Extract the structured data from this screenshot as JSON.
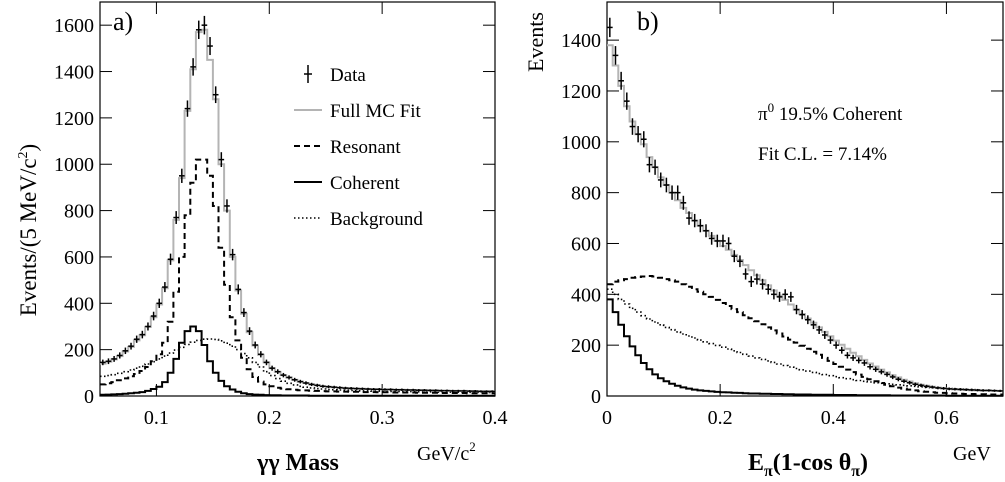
{
  "chart_data": [
    {
      "type": "line",
      "panel_label": "a)",
      "ylabel": "Events/(5 MeV/c",
      "ylabel_sup": "2",
      "ylabel_close": ")",
      "xlabel": "γγ Mass",
      "xunit": "GeV/c",
      "xunit_sup": "2",
      "xlim": [
        0.05,
        0.4
      ],
      "ylim": [
        0,
        1700
      ],
      "xticks": [
        0.1,
        0.2,
        0.3,
        0.4
      ],
      "xtick_labels": [
        "0.1",
        "0.2",
        "0.3",
        "0.4"
      ],
      "yticks": [
        0,
        200,
        400,
        600,
        800,
        1000,
        1200,
        1400,
        1600
      ],
      "ytick_labels": [
        "0",
        "200",
        "400",
        "600",
        "800",
        "1000",
        "1200",
        "1400",
        "1600"
      ],
      "legend_placement": "right",
      "legend": [
        {
          "label": "Data",
          "style": "data"
        },
        {
          "label": "Full MC Fit",
          "style": "full"
        },
        {
          "label": "Resonant",
          "style": "resonant"
        },
        {
          "label": "Coherent",
          "style": "coherent"
        },
        {
          "label": "Background",
          "style": "background"
        }
      ],
      "bin_edges": [
        0.05,
        0.055,
        0.06,
        0.065,
        0.07,
        0.075,
        0.08,
        0.085,
        0.09,
        0.095,
        0.1,
        0.105,
        0.11,
        0.115,
        0.12,
        0.125,
        0.13,
        0.135,
        0.14,
        0.145,
        0.15,
        0.155,
        0.16,
        0.165,
        0.17,
        0.175,
        0.18,
        0.185,
        0.19,
        0.195,
        0.2,
        0.205,
        0.21,
        0.215,
        0.22,
        0.225,
        0.23,
        0.235,
        0.24,
        0.245,
        0.25,
        0.255,
        0.26,
        0.265,
        0.27,
        0.275,
        0.28,
        0.285,
        0.29,
        0.295,
        0.3,
        0.305,
        0.31,
        0.315,
        0.32,
        0.325,
        0.33,
        0.335,
        0.34,
        0.345,
        0.35,
        0.355,
        0.36,
        0.365,
        0.37,
        0.375,
        0.38,
        0.385,
        0.39,
        0.395,
        0.4
      ],
      "series": [
        {
          "name": "Data",
          "style": "data",
          "x": [
            0.0525,
            0.0575,
            0.0625,
            0.0675,
            0.0725,
            0.0775,
            0.0825,
            0.0875,
            0.0925,
            0.0975,
            0.1025,
            0.1075,
            0.1125,
            0.1175,
            0.1225,
            0.1275,
            0.1325,
            0.1375,
            0.1425,
            0.1475,
            0.1525,
            0.1575,
            0.1625,
            0.1675,
            0.1725,
            0.1775,
            0.1825,
            0.1875,
            0.1925,
            0.1975,
            0.2025,
            0.2075,
            0.2125,
            0.2175,
            0.2225,
            0.2275,
            0.2325,
            0.2375,
            0.2425,
            0.2475,
            0.2525,
            0.2575,
            0.2625,
            0.2675,
            0.2725,
            0.2775,
            0.2825,
            0.2875,
            0.2925,
            0.2975,
            0.3025,
            0.3075,
            0.3125,
            0.3175,
            0.3225,
            0.3275,
            0.3325,
            0.3375,
            0.3425,
            0.3475,
            0.3525,
            0.3575,
            0.3625,
            0.3675,
            0.3725,
            0.3775,
            0.3825,
            0.3875,
            0.3925,
            0.3975
          ],
          "y": [
            145,
            150,
            160,
            175,
            195,
            215,
            245,
            265,
            300,
            345,
            400,
            470,
            590,
            770,
            950,
            1240,
            1420,
            1580,
            1600,
            1510,
            1300,
            1020,
            820,
            610,
            460,
            360,
            280,
            220,
            180,
            145,
            120,
            105,
            90,
            80,
            70,
            62,
            56,
            50,
            46,
            42,
            40,
            38,
            36,
            34,
            33,
            32,
            31,
            30,
            29,
            29,
            28,
            28,
            27,
            27,
            26,
            26,
            25,
            25,
            24,
            24,
            23,
            23,
            22,
            22,
            22,
            21,
            21,
            20,
            20,
            20
          ]
        },
        {
          "name": "Full MC Fit",
          "style": "full",
          "values": [
            140,
            148,
            158,
            172,
            192,
            212,
            240,
            262,
            298,
            340,
            395,
            465,
            585,
            760,
            940,
            1230,
            1410,
            1570,
            1580,
            1450,
            1280,
            1000,
            800,
            600,
            455,
            355,
            275,
            218,
            178,
            145,
            120,
            104,
            90,
            80,
            70,
            62,
            56,
            50,
            46,
            42,
            40,
            38,
            36,
            34,
            33,
            32,
            31,
            30,
            29,
            29,
            28,
            28,
            27,
            27,
            26,
            26,
            25,
            25,
            24,
            24,
            23,
            23,
            22,
            22,
            22,
            21,
            21,
            20,
            20,
            20
          ]
        },
        {
          "name": "Resonant",
          "style": "resonant",
          "values": [
            50,
            55,
            60,
            68,
            76,
            85,
            95,
            108,
            125,
            150,
            180,
            230,
            320,
            450,
            600,
            780,
            920,
            1020,
            1020,
            950,
            820,
            640,
            480,
            340,
            240,
            165,
            115,
            82,
            62,
            50,
            42,
            36,
            32,
            29,
            27,
            25,
            24,
            23,
            22,
            21,
            20,
            20,
            19,
            19,
            18,
            18,
            17,
            17,
            17,
            16,
            16,
            16,
            15,
            15,
            15,
            15,
            14,
            14,
            14,
            14,
            13,
            13,
            13,
            13,
            13,
            12,
            12,
            12,
            12,
            12
          ]
        },
        {
          "name": "Coherent",
          "style": "coherent",
          "values": [
            5,
            6,
            7,
            8,
            10,
            12,
            14,
            17,
            22,
            30,
            40,
            60,
            100,
            160,
            230,
            280,
            300,
            280,
            220,
            150,
            100,
            65,
            42,
            28,
            18,
            12,
            8,
            6,
            5,
            4,
            3,
            3,
            2,
            2,
            2,
            2,
            2,
            1,
            1,
            1,
            1,
            1,
            1,
            1,
            1,
            1,
            1,
            1,
            1,
            1,
            1,
            1,
            1,
            1,
            1,
            1,
            1,
            1,
            1,
            1,
            1,
            1,
            1,
            1,
            1,
            1,
            1,
            1,
            1,
            1
          ]
        },
        {
          "name": "Background",
          "style": "background",
          "values": [
            85,
            88,
            92,
            98,
            105,
            112,
            120,
            128,
            138,
            148,
            160,
            172,
            185,
            198,
            210,
            222,
            232,
            240,
            245,
            246,
            244,
            238,
            228,
            215,
            200,
            183,
            165,
            145,
            125,
            105,
            88,
            75,
            64,
            55,
            48,
            42,
            38,
            35,
            32,
            30,
            28,
            27,
            26,
            25,
            24,
            23,
            22,
            22,
            21,
            21,
            20,
            20,
            20,
            19,
            19,
            19,
            18,
            18,
            18,
            18,
            17,
            17,
            17,
            17,
            16,
            16,
            16,
            16,
            16,
            15
          ]
        }
      ]
    },
    {
      "type": "line",
      "panel_label": "b)",
      "ylabel": "Events",
      "xlabel_main": "E",
      "xlabel_sub": "π",
      "xlabel_mid": "(1-cos θ",
      "xlabel_sub2": "π",
      "xlabel_close": ")",
      "xunit": "GeV",
      "xlim": [
        0,
        0.7
      ],
      "ylim": [
        0,
        1550
      ],
      "xticks": [
        0,
        0.2,
        0.4,
        0.6
      ],
      "xtick_labels": [
        "0",
        "0.2",
        "0.4",
        "0.6"
      ],
      "yticks": [
        0,
        200,
        400,
        600,
        800,
        1000,
        1200,
        1400
      ],
      "ytick_labels": [
        "0",
        "200",
        "400",
        "600",
        "800",
        "1000",
        "1200",
        "1400"
      ],
      "annotations": {
        "fraction_pre": "π",
        "fraction_sup": "0",
        "fraction_post": " 19.5% Coherent",
        "fit_cl": "Fit C.L. = 7.14%"
      },
      "bin_edges": [
        0,
        0.01,
        0.02,
        0.03,
        0.04,
        0.05,
        0.06,
        0.07,
        0.08,
        0.09,
        0.1,
        0.11,
        0.12,
        0.13,
        0.14,
        0.15,
        0.16,
        0.17,
        0.18,
        0.19,
        0.2,
        0.21,
        0.22,
        0.23,
        0.24,
        0.25,
        0.26,
        0.27,
        0.28,
        0.29,
        0.3,
        0.31,
        0.32,
        0.33,
        0.34,
        0.35,
        0.36,
        0.37,
        0.38,
        0.39,
        0.4,
        0.41,
        0.42,
        0.43,
        0.44,
        0.45,
        0.46,
        0.47,
        0.48,
        0.49,
        0.5,
        0.51,
        0.52,
        0.53,
        0.54,
        0.55,
        0.56,
        0.57,
        0.58,
        0.59,
        0.6,
        0.61,
        0.62,
        0.63,
        0.64,
        0.65,
        0.66,
        0.67,
        0.68,
        0.69,
        0.7
      ],
      "series": [
        {
          "name": "Data",
          "style": "data",
          "x": [
            0.005,
            0.015,
            0.025,
            0.035,
            0.045,
            0.055,
            0.065,
            0.075,
            0.085,
            0.095,
            0.105,
            0.115,
            0.125,
            0.135,
            0.145,
            0.155,
            0.165,
            0.175,
            0.185,
            0.195,
            0.205,
            0.215,
            0.225,
            0.235,
            0.245,
            0.255,
            0.265,
            0.275,
            0.285,
            0.295,
            0.305,
            0.315,
            0.325,
            0.335,
            0.345,
            0.355,
            0.365,
            0.375,
            0.385,
            0.395,
            0.405,
            0.415,
            0.425,
            0.435,
            0.445,
            0.455,
            0.465,
            0.475,
            0.485,
            0.495,
            0.505,
            0.515,
            0.525,
            0.535,
            0.545,
            0.555,
            0.565,
            0.575,
            0.585,
            0.595,
            0.605,
            0.615,
            0.625,
            0.635,
            0.645,
            0.655,
            0.665,
            0.675,
            0.685,
            0.695
          ],
          "y": [
            1450,
            1340,
            1240,
            1160,
            1060,
            1030,
            1010,
            910,
            900,
            850,
            830,
            800,
            800,
            760,
            700,
            690,
            670,
            650,
            620,
            610,
            610,
            600,
            550,
            530,
            480,
            450,
            460,
            440,
            420,
            400,
            390,
            400,
            390,
            340,
            320,
            300,
            280,
            260,
            240,
            220,
            200,
            180,
            160,
            150,
            140,
            130,
            115,
            105,
            95,
            85,
            75,
            66,
            58,
            52,
            46,
            42,
            38,
            35,
            32,
            30,
            28,
            27,
            26,
            25,
            24,
            23,
            22,
            22,
            21,
            20
          ]
        },
        {
          "name": "Full MC Fit",
          "style": "full",
          "values": [
            1380,
            1300,
            1220,
            1140,
            1080,
            1030,
            990,
            940,
            900,
            860,
            830,
            800,
            770,
            740,
            720,
            690,
            670,
            650,
            630,
            610,
            590,
            575,
            555,
            535,
            515,
            495,
            475,
            455,
            435,
            415,
            395,
            378,
            360,
            340,
            322,
            305,
            288,
            270,
            252,
            235,
            218,
            202,
            186,
            170,
            156,
            142,
            128,
            116,
            104,
            93,
            82,
            73,
            64,
            57,
            50,
            44,
            40,
            36,
            33,
            30,
            28,
            26,
            25,
            24,
            23,
            22,
            21,
            21,
            20,
            20
          ]
        },
        {
          "name": "Resonant",
          "style": "resonant",
          "values": [
            440,
            450,
            455,
            460,
            465,
            468,
            470,
            472,
            470,
            465,
            460,
            455,
            450,
            440,
            430,
            420,
            410,
            400,
            390,
            378,
            366,
            354,
            342,
            330,
            318,
            306,
            294,
            282,
            270,
            258,
            246,
            234,
            222,
            210,
            198,
            186,
            174,
            162,
            150,
            138,
            126,
            115,
            104,
            94,
            84,
            75,
            66,
            58,
            51,
            44,
            38,
            33,
            29,
            25,
            22,
            19,
            17,
            15,
            13,
            12,
            11,
            10,
            9,
            8,
            8,
            7,
            7,
            6,
            6,
            6
          ]
        },
        {
          "name": "Coherent",
          "style": "coherent",
          "values": [
            380,
            330,
            280,
            235,
            195,
            160,
            130,
            105,
            85,
            70,
            58,
            48,
            40,
            34,
            29,
            25,
            22,
            20,
            18,
            16,
            15,
            14,
            13,
            12,
            11,
            10,
            10,
            9,
            9,
            8,
            8,
            7,
            7,
            6,
            6,
            6,
            5,
            5,
            5,
            5,
            4,
            4,
            4,
            4,
            3,
            3,
            3,
            3,
            3,
            3,
            2,
            2,
            2,
            2,
            2,
            2,
            2,
            2,
            2,
            2,
            1,
            1,
            1,
            1,
            1,
            1,
            1,
            1,
            1,
            1
          ]
        },
        {
          "name": "Background",
          "style": "background",
          "values": [
            420,
            400,
            380,
            362,
            345,
            330,
            316,
            303,
            291,
            280,
            270,
            261,
            252,
            244,
            236,
            228,
            220,
            213,
            206,
            199,
            192,
            185,
            178,
            171,
            164,
            157,
            150,
            144,
            138,
            132,
            126,
            120,
            114,
            108,
            103,
            98,
            93,
            88,
            84,
            80,
            76,
            72,
            68,
            64,
            61,
            58,
            55,
            52,
            50,
            48,
            46,
            44,
            42,
            40,
            38,
            36,
            34,
            33,
            31,
            30,
            29,
            28,
            27,
            26,
            25,
            24,
            23,
            22,
            21,
            20
          ]
        }
      ]
    }
  ]
}
